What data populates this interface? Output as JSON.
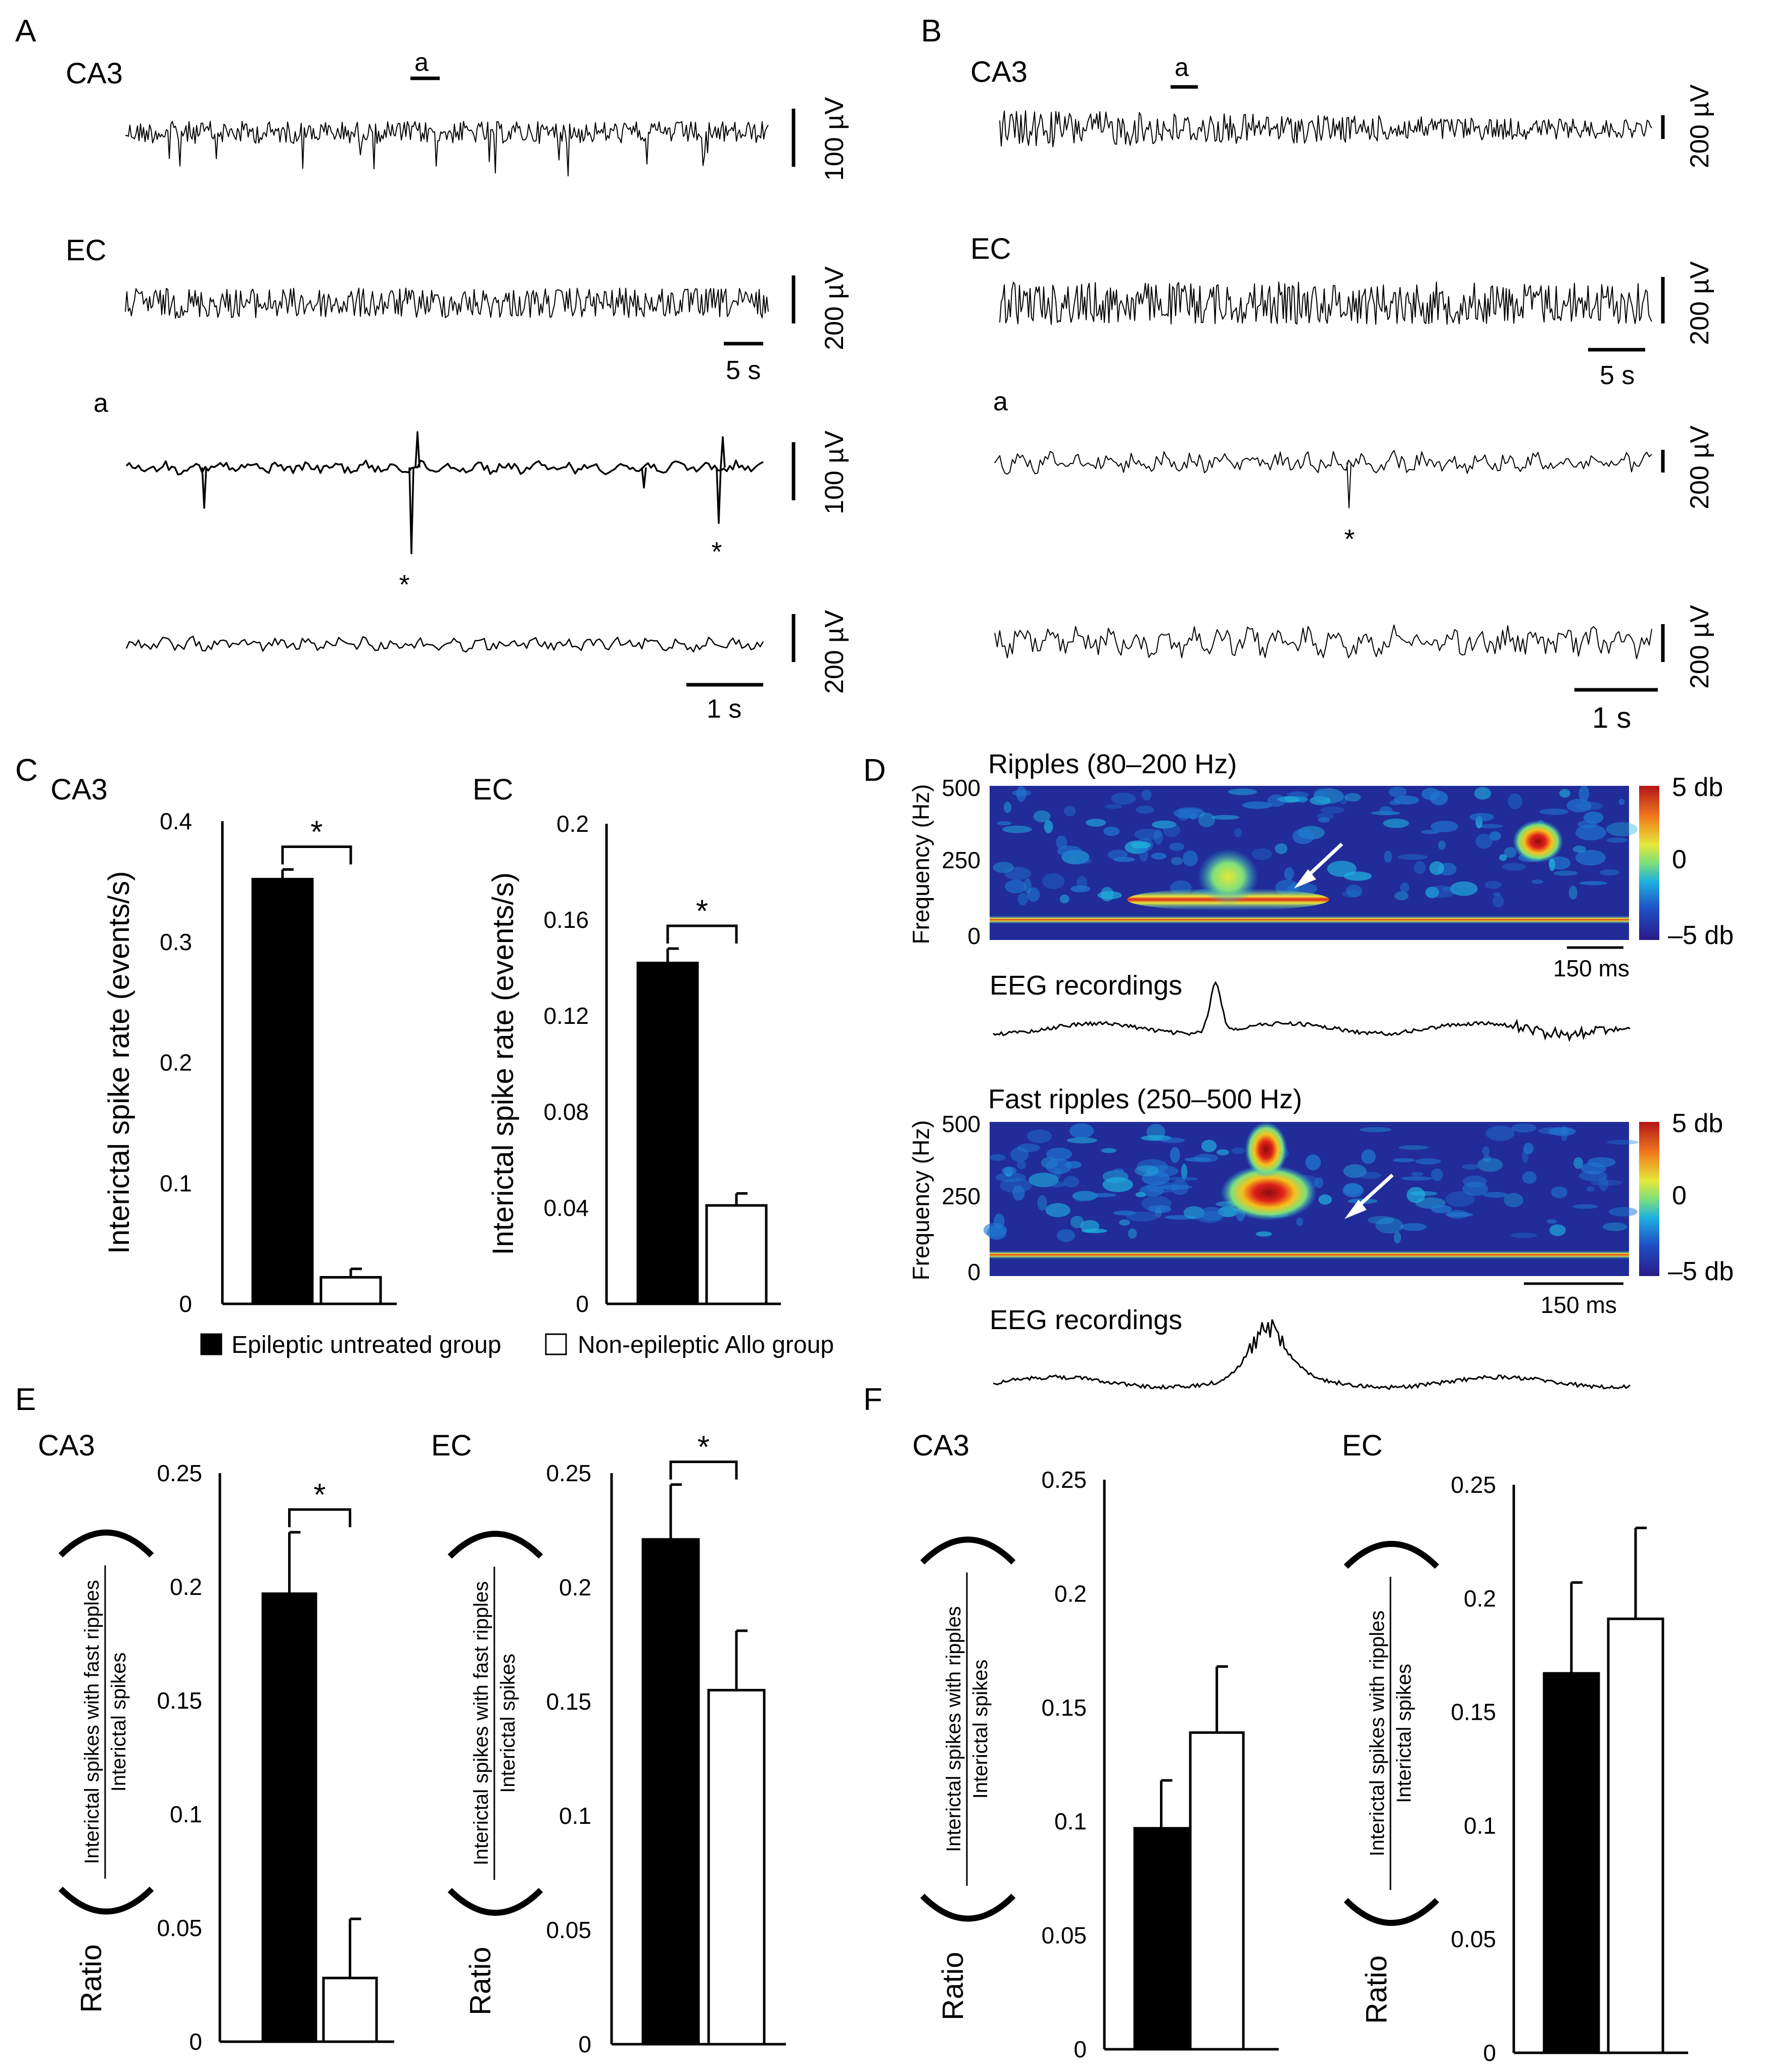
{
  "panel_labels": {
    "A": "A",
    "B": "B",
    "C": "C",
    "D": "D",
    "E": "E",
    "F": "F"
  },
  "panelA": {
    "ca3_label": "CA3",
    "ec_label": "EC",
    "marker": "a",
    "sub_label": "a",
    "scale_ca3": "100 µV",
    "scale_ec": "200 µV",
    "time_scale": "5 s",
    "scale_a1": "100 µV",
    "scale_a2": "200 µV",
    "time_scale_a": "1 s",
    "star": "*"
  },
  "panelB": {
    "ca3_label": "CA3",
    "ec_label": "EC",
    "marker": "a",
    "sub_label": "a",
    "scale_ca3": "200 µV",
    "scale_ec": "200 µV",
    "time_scale": "5 s",
    "scale_a1": "200 µV",
    "scale_a2": "200 µV",
    "time_scale_a": "1 s",
    "star": "*"
  },
  "panelD": {
    "ripples_title": "Ripples (80–200 Hz)",
    "fast_title": "Fast ripples (250–500 Hz)",
    "ylabel": "Frequency (Hz)",
    "yticks": [
      "500",
      "250",
      "0"
    ],
    "colorbar": [
      "5 db",
      "0",
      "–5 db"
    ],
    "time_scale": "150 ms",
    "eeg_label": "EEG recordings"
  },
  "legend": {
    "epileptic": "Epileptic untreated group",
    "nonepileptic": "Non-epileptic Allo group"
  },
  "colors": {
    "epileptic": "#000000",
    "nonepileptic": "#ffffff"
  },
  "chart_data": [
    {
      "type": "bar",
      "panel": "C",
      "title": "CA3",
      "ylabel": "Interictal spike rate (events/s)",
      "categories": [
        "Epileptic untreated group",
        "Non-epileptic Allo group"
      ],
      "values": [
        0.352,
        0.022
      ],
      "errors": [
        0.008,
        0.007
      ],
      "ylim": [
        0,
        0.4
      ],
      "yticks": [
        "0",
        "0.1",
        "0.2",
        "0.3",
        "0.4"
      ],
      "significance": "*"
    },
    {
      "type": "bar",
      "panel": "C",
      "title": "EC",
      "ylabel": "Interictal spike rate (events/s)",
      "categories": [
        "Epileptic untreated group",
        "Non-epileptic Allo group"
      ],
      "values": [
        0.142,
        0.041
      ],
      "errors": [
        0.006,
        0.005
      ],
      "ylim": [
        0,
        0.2
      ],
      "yticks": [
        "0",
        "0.04",
        "0.08",
        "0.12",
        "0.16",
        "0.2"
      ],
      "significance": "*"
    },
    {
      "type": "bar",
      "panel": "E",
      "title": "CA3",
      "ylabel_prefix": "Ratio",
      "ylabel_num": "Interictal spikes with fast ripples",
      "ylabel_den": "Interictal spikes",
      "categories": [
        "Epileptic untreated group",
        "Non-epileptic Allo group"
      ],
      "values": [
        0.197,
        0.028
      ],
      "errors": [
        0.027,
        0.026
      ],
      "ylim": [
        0,
        0.25
      ],
      "yticks": [
        "0",
        "0.05",
        "0.1",
        "0.15",
        "0.2",
        "0.25"
      ],
      "significance": "*"
    },
    {
      "type": "bar",
      "panel": "E",
      "title": "EC",
      "ylabel_prefix": "Ratio",
      "ylabel_num": "Interictal spikes with fast ripples",
      "ylabel_den": "Interictal spikes",
      "categories": [
        "Epileptic untreated group",
        "Non-epileptic Allo group"
      ],
      "values": [
        0.221,
        0.155
      ],
      "errors": [
        0.024,
        0.026
      ],
      "ylim": [
        0,
        0.25
      ],
      "yticks": [
        "0",
        "0.05",
        "0.1",
        "0.15",
        "0.2",
        "0.25"
      ],
      "significance": "*"
    },
    {
      "type": "bar",
      "panel": "F",
      "title": "CA3",
      "ylabel_prefix": "Ratio",
      "ylabel_num": "Interictal spikes with ripples",
      "ylabel_den": "Interictal spikes",
      "categories": [
        "Epileptic untreated group",
        "Non-epileptic Allo group"
      ],
      "values": [
        0.097,
        0.139
      ],
      "errors": [
        0.021,
        0.029
      ],
      "ylim": [
        0,
        0.25
      ],
      "yticks": [
        "0",
        "0.05",
        "0.1",
        "0.15",
        "0.2",
        "0.25"
      ],
      "significance": ""
    },
    {
      "type": "bar",
      "panel": "F",
      "title": "EC",
      "ylabel_prefix": "Ratio",
      "ylabel_num": "Interictal spikes with ripples",
      "ylabel_den": "Interictal spikes",
      "categories": [
        "Epileptic untreated group",
        "Non-epileptic Allo group"
      ],
      "values": [
        0.167,
        0.191
      ],
      "errors": [
        0.04,
        0.04
      ],
      "ylim": [
        0,
        0.25
      ],
      "yticks": [
        "0",
        "0.05",
        "0.1",
        "0.15",
        "0.2",
        "0.25"
      ],
      "significance": ""
    }
  ]
}
